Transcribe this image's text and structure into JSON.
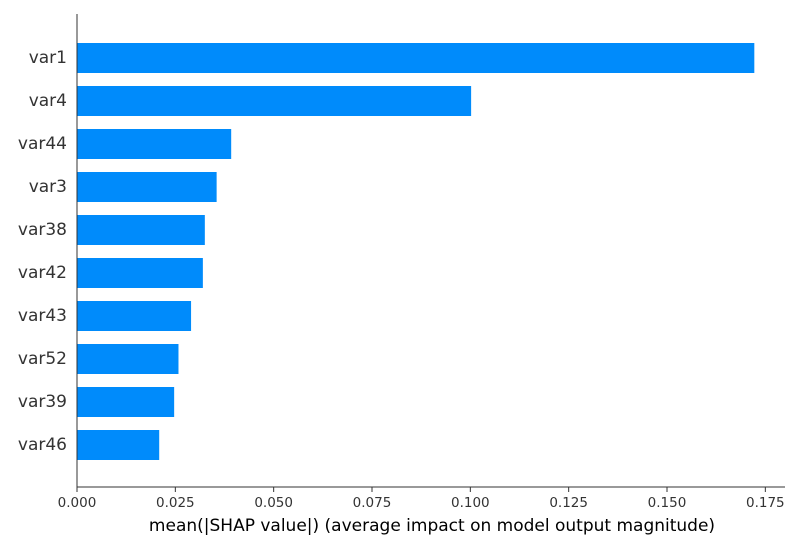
{
  "chart_data": {
    "type": "bar",
    "orientation": "horizontal",
    "title": "",
    "xlabel": "mean(|SHAP value|) (average impact on model output magnitude)",
    "ylabel": "",
    "categories": [
      "var1",
      "var4",
      "var44",
      "var3",
      "var38",
      "var42",
      "var43",
      "var52",
      "var39",
      "var46"
    ],
    "values": [
      0.1722,
      0.1002,
      0.0392,
      0.0355,
      0.0325,
      0.032,
      0.029,
      0.0258,
      0.0247,
      0.0209
    ],
    "xlim": [
      0.0,
      0.18
    ],
    "xticks": [
      {
        "value": 0.0,
        "label": "0.000"
      },
      {
        "value": 0.025,
        "label": "0.025"
      },
      {
        "value": 0.05,
        "label": "0.050"
      },
      {
        "value": 0.075,
        "label": "0.075"
      },
      {
        "value": 0.1,
        "label": "0.100"
      },
      {
        "value": 0.125,
        "label": "0.125"
      },
      {
        "value": 0.15,
        "label": "0.150"
      },
      {
        "value": 0.175,
        "label": "0.175"
      }
    ],
    "bar_color": "#008bfb",
    "grid": false,
    "legend": "none"
  }
}
